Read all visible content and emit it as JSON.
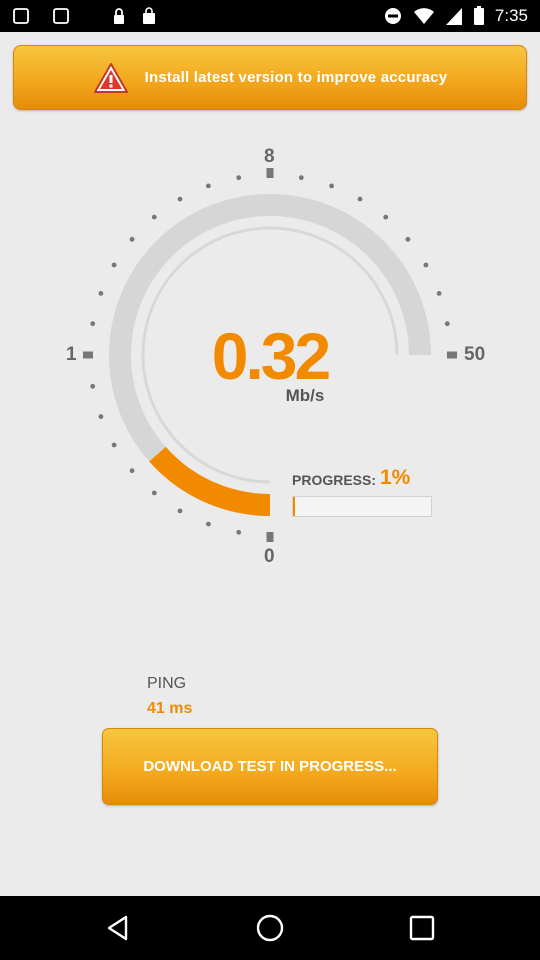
{
  "status_bar": {
    "time": "7:35",
    "icons": [
      "notification-icon",
      "notification-icon",
      "lock-icon",
      "store-icon",
      "do-not-disturb-icon",
      "wifi-icon",
      "signal-icon",
      "battery-icon"
    ]
  },
  "banner": {
    "icon": "warning-icon",
    "text": "Install latest version to improve accuracy"
  },
  "gauge": {
    "speed_value": "0.32",
    "speed_unit": "Mb/s",
    "scale_labels": {
      "bottom": "0",
      "left": "1",
      "top": "8",
      "right": "50"
    },
    "progress_arc_fraction": 0.18,
    "accent_color": "#f28a00",
    "track_color": "#d6d6d6"
  },
  "progress": {
    "label": "PROGRESS:",
    "value": "1%",
    "fraction": 0.01
  },
  "ping": {
    "label": "PING",
    "value": "41 ms"
  },
  "download_button": {
    "label": "DOWNLOAD TEST IN PROGRESS..."
  },
  "nav_bar": {
    "buttons": [
      "back-icon",
      "home-icon",
      "recents-icon"
    ]
  }
}
